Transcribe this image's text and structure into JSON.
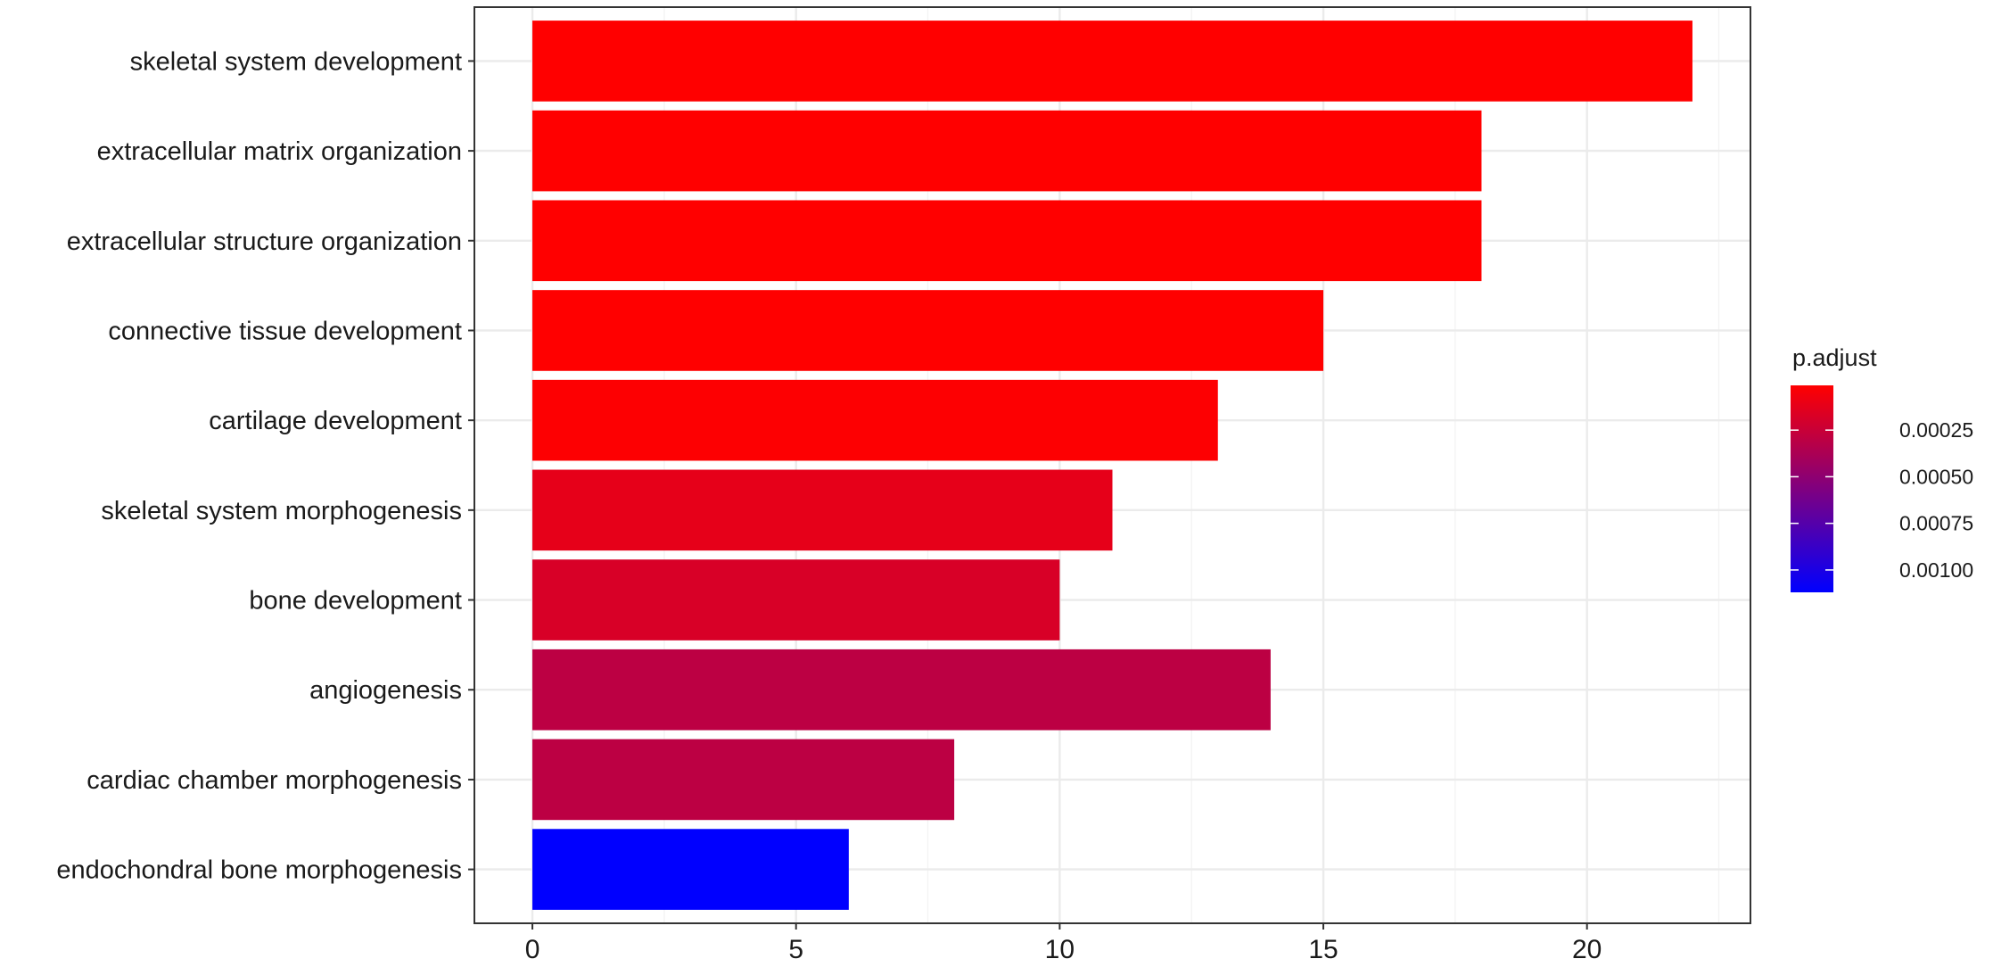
{
  "chart_data": {
    "type": "bar",
    "orientation": "horizontal",
    "categories": [
      "skeletal system development",
      "extracellular matrix organization",
      "extracellular structure organization",
      "connective tissue development",
      "cartilage development",
      "skeletal system morphogenesis",
      "bone development",
      "angiogenesis",
      "cardiac chamber morphogenesis",
      "endochondral bone morphogenesis"
    ],
    "values": [
      22,
      18,
      18,
      15,
      13,
      11,
      10,
      14,
      8,
      6
    ],
    "p_adjust": [
      1e-05,
      1e-05,
      1e-05,
      1e-05,
      2e-05,
      0.00012,
      0.00018,
      0.0003,
      0.0003,
      0.00112
    ],
    "xlim": [
      -1.1,
      23.1
    ],
    "x_ticks": [
      "0",
      "5",
      "10",
      "15",
      "20"
    ],
    "x_tick_values": [
      0,
      5,
      10,
      15,
      20
    ],
    "xlabel": "",
    "ylabel": "",
    "grid": true,
    "theme": "bw",
    "colorbar": {
      "title": "p.adjust",
      "low_color": "#ff0000",
      "high_color": "#0000ff",
      "range": [
        1e-05,
        0.00112
      ],
      "ticks": [
        "0.00025",
        "0.00050",
        "0.00075",
        "0.00100"
      ],
      "tick_values": [
        0.00025,
        0.0005,
        0.00075,
        0.001
      ]
    }
  }
}
